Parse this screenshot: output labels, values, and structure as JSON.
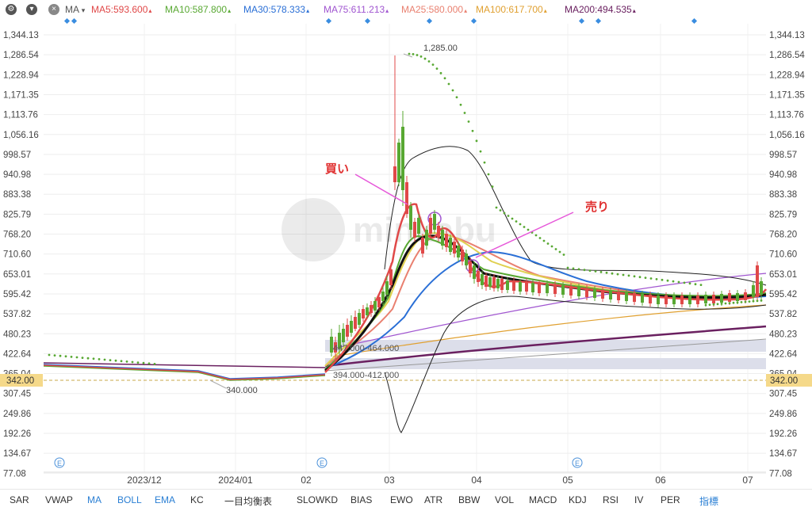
{
  "toolbar": {
    "ma_selector": "MA",
    "legend": [
      {
        "label": "MA5:593.600",
        "color": "#e04848"
      },
      {
        "label": "MA10:587.800",
        "color": "#58a832"
      },
      {
        "label": "MA30:578.333",
        "color": "#2a6fd6"
      },
      {
        "label": "MA75:611.213",
        "color": "#a055d0"
      },
      {
        "label": "MA25:580.000",
        "color": "#e98070"
      },
      {
        "label": "MA100:617.700",
        "color": "#e0a030"
      },
      {
        "label": "MA200:494.535",
        "color": "#6a2060"
      }
    ]
  },
  "y_axis": {
    "ticks": [
      "1,344.13",
      "1,286.54",
      "1,228.94",
      "1,171.35",
      "1,113.76",
      "1,056.16",
      "998.57",
      "940.98",
      "883.38",
      "825.79",
      "768.20",
      "710.60",
      "653.01",
      "595.42",
      "537.82",
      "480.23",
      "422.64",
      "365.04",
      "307.45",
      "249.86",
      "192.26",
      "134.67",
      "77.08"
    ],
    "current_price": "342.00"
  },
  "x_axis": {
    "labels": [
      "2023/12",
      "2024/01",
      "02",
      "03",
      "04",
      "05",
      "06",
      "07"
    ]
  },
  "annotations": {
    "high_label": "1,285.00",
    "low_label": "340.000",
    "zone_upper": "447.000-464.000",
    "zone_lower": "394.000-412.000",
    "buy_label": "買い",
    "sell_label": "売り",
    "event_marker": "E",
    "watermark": "minkabu"
  },
  "indicators": [
    "SAR",
    "VWAP",
    "MA",
    "BOLL",
    "EMA",
    "KC",
    "一目均衡表",
    "SLOWKD",
    "BIAS",
    "EWO",
    "ATR",
    "BBW",
    "VOL",
    "MACD",
    "KDJ",
    "RSI",
    "IV",
    "PER",
    "指標"
  ],
  "active_indicators": [
    "MA",
    "BOLL",
    "EMA",
    "指標"
  ],
  "colors": {
    "buy": "#e03030",
    "sell": "#e03030",
    "up_candle": "#58a832",
    "down_candle": "#e04848",
    "price_line": "#c9a84a"
  }
}
